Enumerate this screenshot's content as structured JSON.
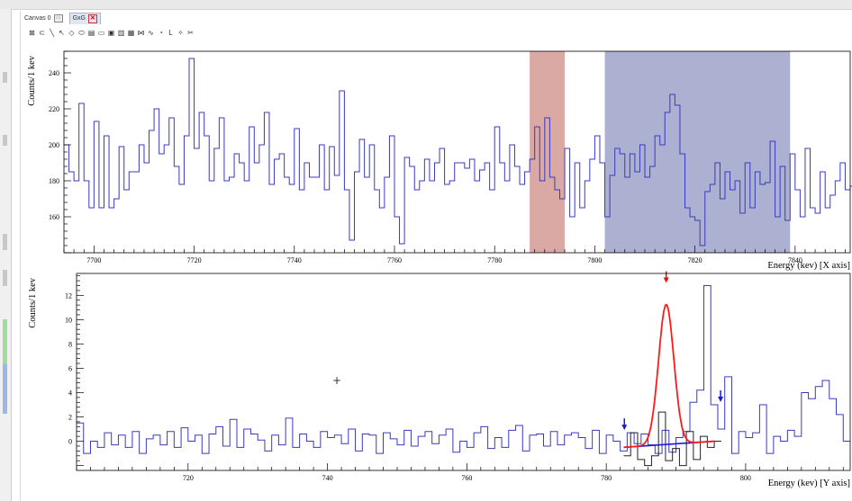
{
  "tabs": [
    {
      "label": "Canvas 0",
      "icon": "canvas-icon",
      "active": false
    },
    {
      "label": "GxG",
      "icon": "close-icon",
      "active": true
    }
  ],
  "toolbar": {
    "tools": [
      {
        "name": "pad-tool",
        "glyph": "⊠"
      },
      {
        "name": "arc-tool",
        "glyph": "⊂"
      },
      {
        "name": "line-tool",
        "glyph": "╲"
      },
      {
        "name": "arrow-tool",
        "glyph": "↖"
      },
      {
        "name": "diamond-tool",
        "glyph": "◇"
      },
      {
        "name": "ellipse-tool",
        "glyph": "⬭"
      },
      {
        "name": "pave-tool",
        "glyph": "▤"
      },
      {
        "name": "pavelabel-tool",
        "glyph": "▭"
      },
      {
        "name": "pavetext-tool",
        "glyph": "▣"
      },
      {
        "name": "pavestext-tool",
        "glyph": "▥"
      },
      {
        "name": "pavestext2-tool",
        "glyph": "▦"
      },
      {
        "name": "graph-tool",
        "glyph": "⋈"
      },
      {
        "name": "curlyline-tool",
        "glyph": "∿"
      },
      {
        "name": "curlyarc-tool",
        "glyph": "◔"
      },
      {
        "name": "latex-tool",
        "glyph": "L"
      },
      {
        "name": "marker-tool",
        "glyph": "✧"
      },
      {
        "name": "cut-tool",
        "glyph": "✂"
      }
    ]
  },
  "colors": {
    "histogram": "#3a3ac0",
    "fit_curve": "#ff1a1a",
    "background_fit": "#1818e0",
    "peak_marker": "#e01010",
    "bg_marker": "#1818e0",
    "overlay_hist": "#222222",
    "gate_region": "#d7a09a",
    "background_region": "#a3a8cc"
  },
  "cursor": "+",
  "chart_data": [
    {
      "type": "line",
      "title": "",
      "xlabel": "Energy (kev) [X axis]",
      "ylabel": "Counts/1 kev",
      "xlim": [
        7694,
        7851
      ],
      "ylim": [
        140,
        252
      ],
      "xticks": [
        7700,
        7720,
        7740,
        7760,
        7780,
        7800,
        7820,
        7840
      ],
      "yticks": [
        160,
        180,
        200,
        220,
        240
      ],
      "bin_width": 1,
      "x_start": 7694,
      "regions": [
        {
          "name": "gate",
          "x": [
            7787,
            7794
          ]
        },
        {
          "name": "background",
          "x": [
            7802,
            7839
          ]
        }
      ],
      "series": [
        {
          "values": [
            200,
            185,
            180,
            223,
            180,
            165,
            213,
            165,
            205,
            165,
            170,
            199,
            175,
            185,
            185,
            200,
            190,
            208,
            220,
            195,
            200,
            215,
            188,
            178,
            205,
            248,
            198,
            218,
            205,
            180,
            198,
            215,
            180,
            182,
            195,
            190,
            180,
            210,
            190,
            200,
            218,
            178,
            192,
            195,
            182,
            178,
            209,
            175,
            190,
            182,
            182,
            200,
            175,
            199,
            183,
            230,
            175,
            147,
            185,
            203,
            182,
            200,
            175,
            165,
            182,
            205,
            160,
            145,
            193,
            188,
            175,
            180,
            192,
            180,
            190,
            198,
            178,
            180,
            190,
            190,
            187,
            192,
            180,
            186,
            190,
            175,
            210,
            190,
            180,
            200,
            188,
            178,
            185,
            192,
            210,
            180,
            215,
            182,
            175,
            170,
            198,
            160,
            190,
            165,
            180,
            192,
            205,
            190,
            160,
            183,
            198,
            195,
            182,
            195,
            185,
            200,
            182,
            188,
            205,
            200,
            218,
            228,
            222,
            195,
            165,
            160,
            158,
            144,
            174,
            178,
            190,
            170,
            185,
            175,
            180,
            162,
            190,
            165,
            185,
            178,
            179,
            202,
            160,
            188,
            158,
            195,
            175,
            160,
            198,
            165,
            162,
            185,
            165,
            172,
            180,
            190,
            175,
            177,
            160,
            190,
            182,
            175
          ]
        },
        {
          "values": []
        }
      ]
    },
    {
      "type": "line",
      "title": "",
      "xlabel": "Energy (kev) [Y axis]",
      "ylabel": "Counts/1 kev",
      "xlim": [
        704,
        815
      ],
      "ylim": [
        -2.4,
        13.8
      ],
      "xticks": [
        720,
        740,
        760,
        780,
        800
      ],
      "yticks": [
        0,
        2,
        4,
        6,
        8,
        10,
        12
      ],
      "bin_width": 1,
      "x_start": 704,
      "fit_range": [
        782.5,
        795.5
      ],
      "markers": {
        "peak": 788.6,
        "background_left": 782.6,
        "background_right": 796.4
      },
      "series": [
        {
          "name": "projection",
          "values": [
            1.5,
            -1,
            0,
            -0.5,
            0.7,
            -0.3,
            0.5,
            -0.5,
            0.8,
            -1,
            0.2,
            0.5,
            -0.3,
            0.8,
            -0.5,
            1.1,
            0,
            0.5,
            -1,
            0.6,
            1.2,
            -0.4,
            1.8,
            -0.5,
            1,
            0.6,
            0.1,
            -0.8,
            0.5,
            -0.3,
            1.9,
            -0.5,
            0.6,
            0,
            -0.5,
            0.8,
            0.3,
            0.5,
            -0.2,
            1,
            -0.8,
            0.6,
            0.5,
            -1,
            0.7,
            0.2,
            -0.3,
            0.9,
            -0.4,
            0.4,
            0.8,
            -0.2,
            0.5,
            1,
            -0.9,
            0,
            -0.5,
            0.7,
            1.2,
            -0.6,
            0.3,
            -0.5,
            0.9,
            1.3,
            -0.8,
            0.5,
            0.6,
            -0.4,
            0.8,
            -0.3,
            0.5,
            0.7,
            0.3,
            -0.6,
            0.9,
            -1,
            0.5,
            0,
            -0.8,
            0.7,
            -0.2,
            0.6,
            -0.3,
            -1,
            0.9,
            -0.9,
            0.3,
            0.8,
            3.2,
            4.2,
            12.8,
            3,
            1,
            5.3,
            -1,
            0.8,
            0.3,
            0.7,
            3,
            -1,
            0.4,
            0,
            0.9,
            0.4,
            4,
            3.5,
            4.5,
            5,
            3.5,
            2.2,
            0
          ]
        },
        {
          "name": "overlay",
          "values": [
            -1.2,
            0.7,
            -1.5,
            -2,
            -1.2,
            2.4,
            -1.6,
            -0.6,
            -2,
            0.8,
            -1.5,
            0.4,
            -0.5,
            0
          ]
        },
        {
          "name": "peak-fit",
          "type": "gaussian",
          "amplitude": 11.5,
          "mean": 788.6,
          "sigma": 1.1
        },
        {
          "name": "background-fit",
          "type": "linear",
          "start": [
            782.5,
            -0.5
          ],
          "end": [
            795.5,
            0
          ]
        }
      ]
    }
  ]
}
